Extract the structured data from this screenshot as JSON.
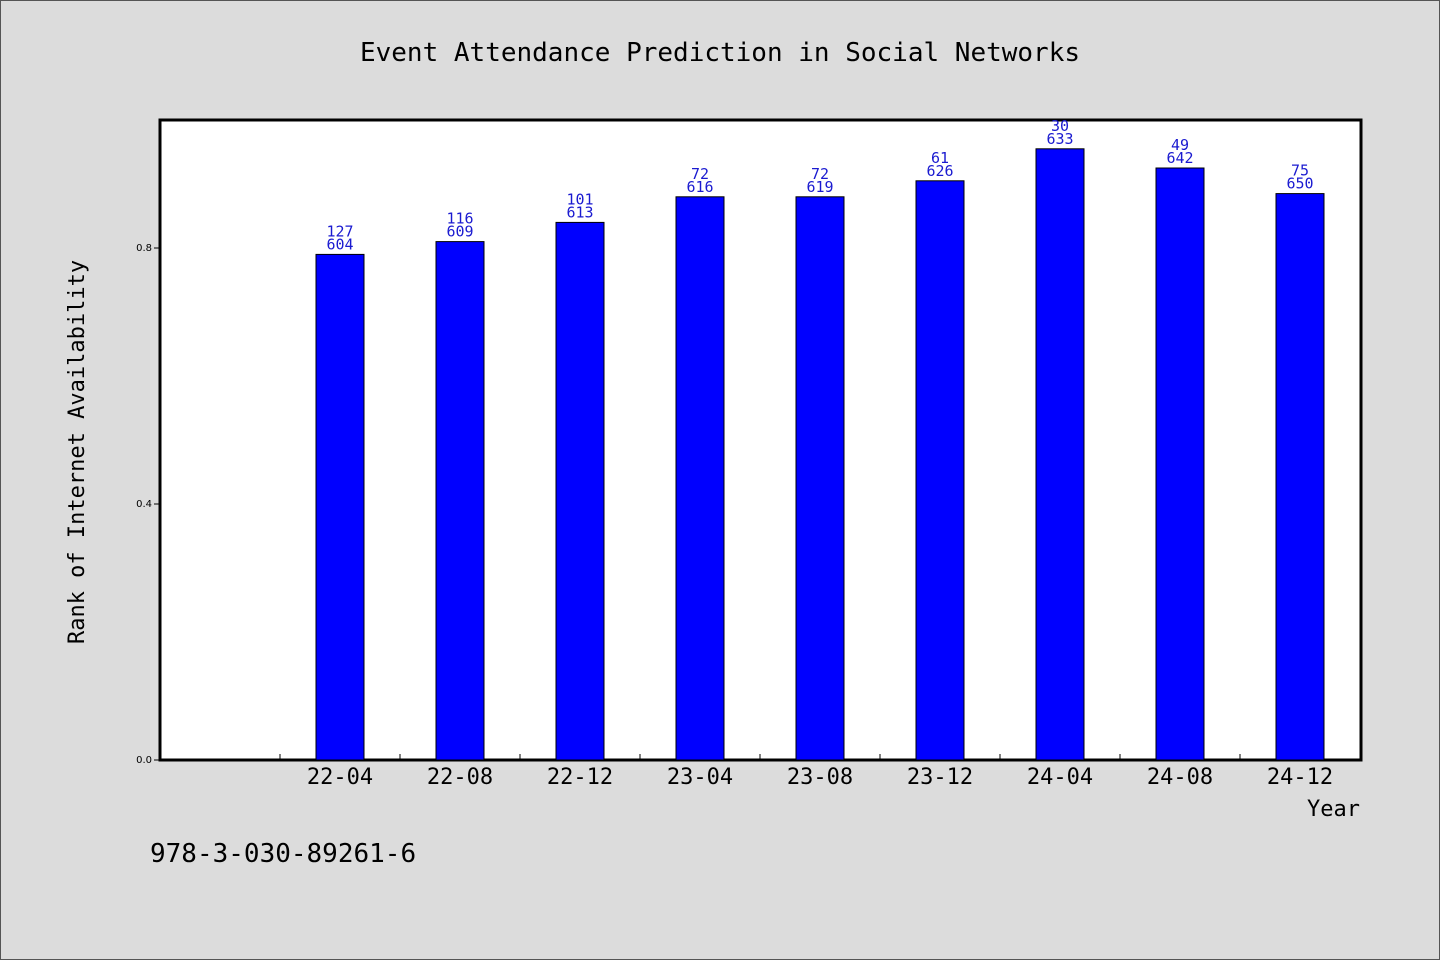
{
  "chart_data": {
    "type": "bar",
    "title": "Event Attendance Prediction in Social Networks",
    "xlabel": "Year",
    "ylabel": "Rank of Internet Availability",
    "categories": [
      "22-04",
      "22-08",
      "22-12",
      "23-04",
      "23-08",
      "23-12",
      "24-04",
      "24-08",
      "24-12"
    ],
    "values": [
      0.79,
      0.81,
      0.84,
      0.88,
      0.88,
      0.905,
      0.955,
      0.925,
      0.885
    ],
    "bar_labels_top": [
      "127",
      "116",
      "101",
      "72",
      "72",
      "61",
      "30",
      "49",
      "75"
    ],
    "bar_labels_bottom": [
      "604",
      "609",
      "613",
      "616",
      "619",
      "626",
      "633",
      "642",
      "650"
    ],
    "y_ticks": [
      "0.0",
      "0.4",
      "0.8"
    ],
    "ylim": [
      0,
      1.0
    ],
    "bar_color": "#0000ff",
    "grid": false,
    "legend": "none"
  },
  "footer_text": "978-3-030-89261-6"
}
